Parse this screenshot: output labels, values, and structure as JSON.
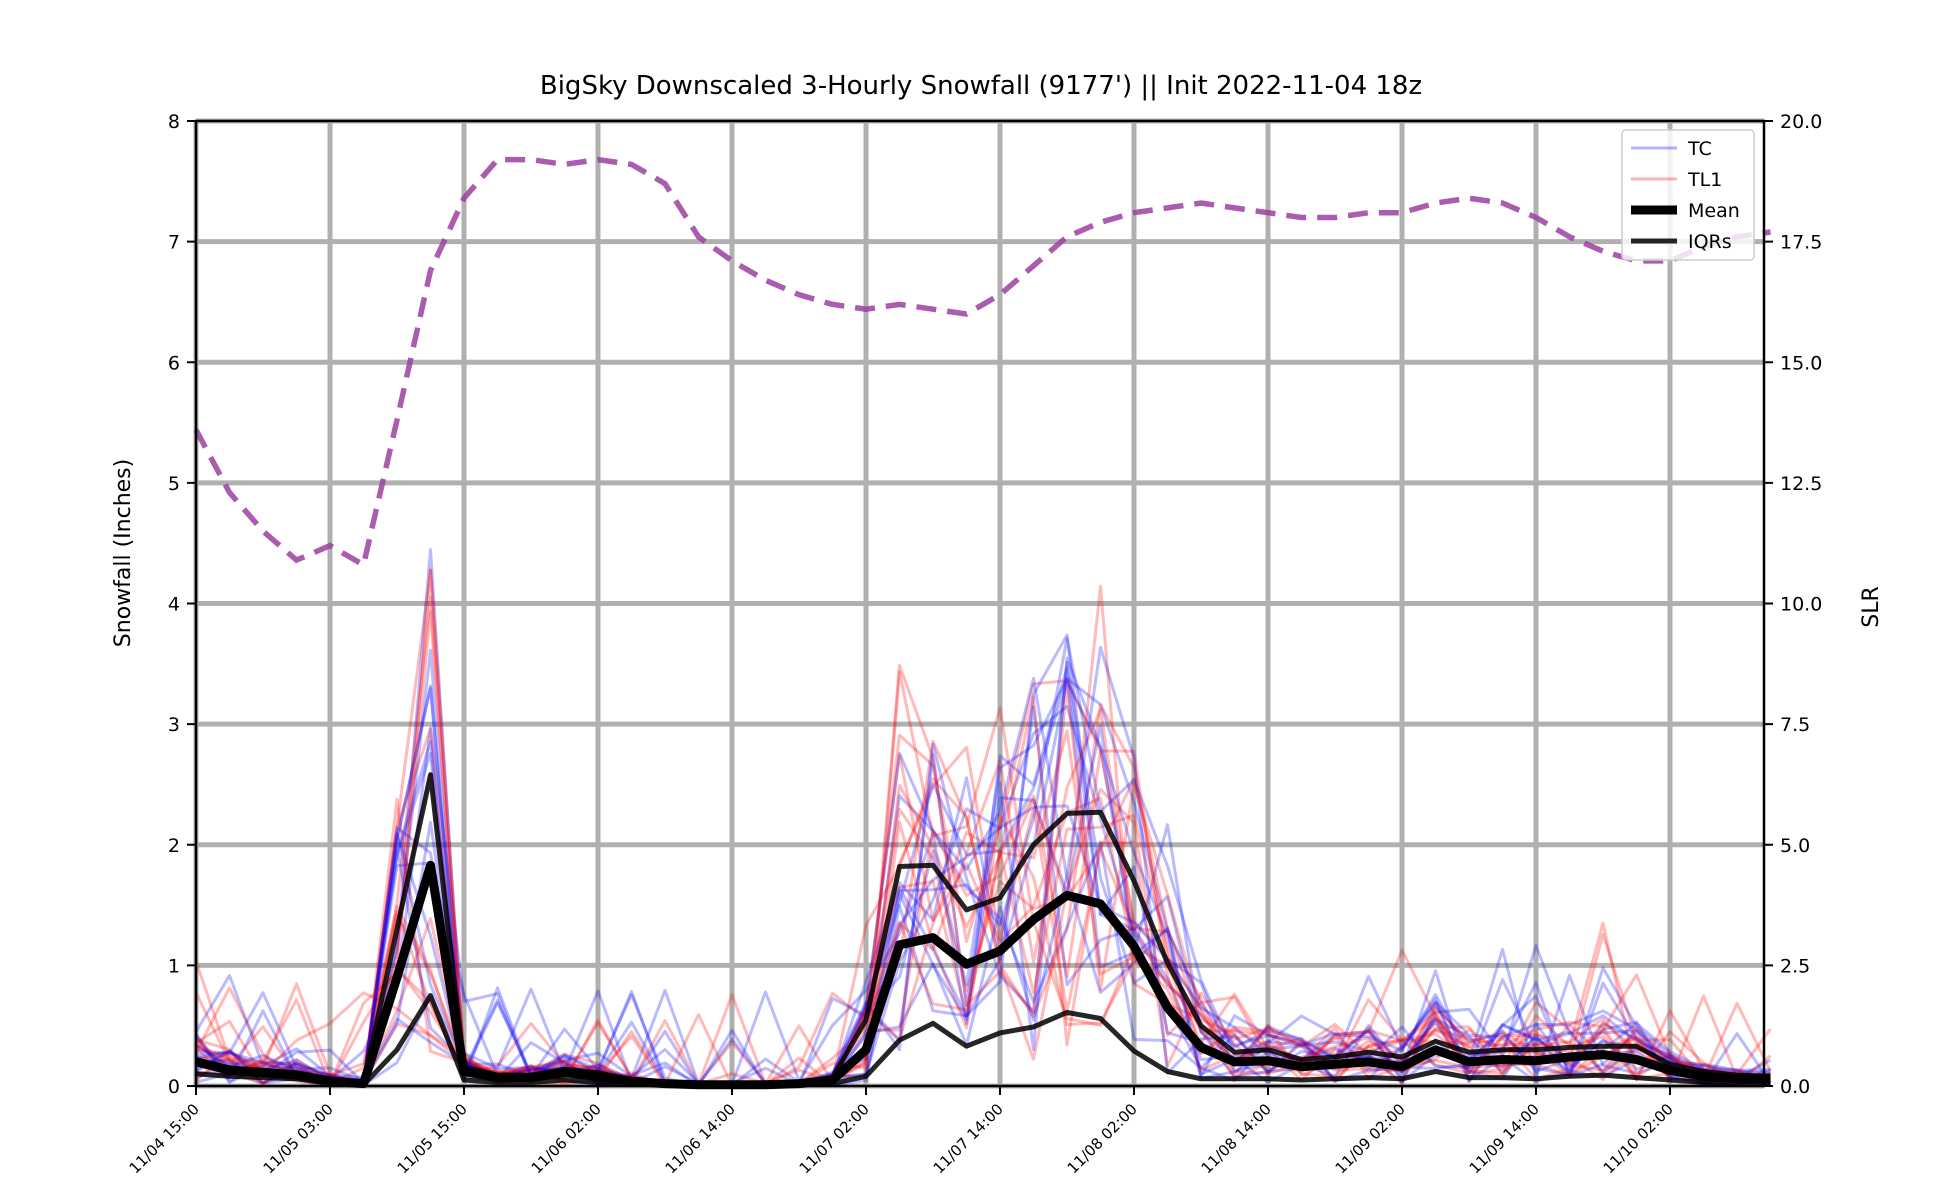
{
  "chart_data": {
    "type": "line",
    "title": "BigSky Downscaled 3-Hourly Snowfall (9177') || Init 2022-11-04 18z",
    "ylabel": "Snowfall (Inches)",
    "y2label": "SLR",
    "ylim": [
      0,
      8
    ],
    "y2lim": [
      0,
      20
    ],
    "yticks": [
      0,
      1,
      2,
      3,
      4,
      5,
      6,
      7,
      8
    ],
    "y2ticks": [
      "0.0",
      "2.5",
      "5.0",
      "7.5",
      "10.0",
      "12.5",
      "15.0",
      "17.5",
      "20.0"
    ],
    "x_start": "11/04 15:00",
    "x_step_hours": 3,
    "xticks": [
      {
        "label": "11/04 15:00",
        "index": 0
      },
      {
        "label": "11/05 03:00",
        "index": 4
      },
      {
        "label": "11/05 15:00",
        "index": 8
      },
      {
        "label": "11/06 02:00",
        "index": 12
      },
      {
        "label": "11/06 14:00",
        "index": 16
      },
      {
        "label": "11/07 02:00",
        "index": 20
      },
      {
        "label": "11/07 14:00",
        "index": 24
      },
      {
        "label": "11/08 02:00",
        "index": 28
      },
      {
        "label": "11/08 14:00",
        "index": 32
      },
      {
        "label": "11/09 02:00",
        "index": 36
      },
      {
        "label": "11/09 14:00",
        "index": 40
      },
      {
        "label": "11/10 02:00",
        "index": 44
      }
    ],
    "grid": true,
    "legend_position": "top-right",
    "legend": [
      {
        "label": "TC",
        "color": "#0000ff",
        "style": "thin-translucent"
      },
      {
        "label": "TL1",
        "color": "#ff0000",
        "style": "thin-translucent"
      },
      {
        "label": "Mean",
        "color": "#000000",
        "style": "thick"
      },
      {
        "label": "IQRs",
        "color": "#000000",
        "style": "medium"
      }
    ],
    "series": [
      {
        "name": "Mean",
        "color": "#000000",
        "values": [
          0.2,
          0.13,
          0.11,
          0.09,
          0.04,
          0.02,
          0.9,
          1.83,
          0.12,
          0.07,
          0.07,
          0.11,
          0.08,
          0.04,
          0.02,
          0.01,
          0.01,
          0.01,
          0.02,
          0.05,
          0.3,
          1.17,
          1.23,
          1.01,
          1.12,
          1.38,
          1.58,
          1.51,
          1.16,
          0.65,
          0.32,
          0.2,
          0.21,
          0.16,
          0.18,
          0.2,
          0.16,
          0.3,
          0.2,
          0.22,
          0.21,
          0.24,
          0.26,
          0.22,
          0.13,
          0.08,
          0.06,
          0.06
        ]
      },
      {
        "name": "IQRs",
        "color": "#000000",
        "values": [
          0.22,
          0.15,
          0.13,
          0.11,
          0.06,
          0.03,
          1.3,
          2.58,
          0.16,
          0.09,
          0.09,
          0.14,
          0.11,
          0.05,
          0.03,
          0.02,
          0.02,
          0.02,
          0.03,
          0.07,
          0.55,
          1.82,
          1.83,
          1.46,
          1.56,
          2.0,
          2.26,
          2.27,
          1.7,
          1.02,
          0.5,
          0.28,
          0.3,
          0.22,
          0.24,
          0.28,
          0.24,
          0.37,
          0.28,
          0.3,
          0.3,
          0.32,
          0.33,
          0.33,
          0.18,
          0.12,
          0.09,
          0.08
        ]
      },
      {
        "name": "IQRs",
        "color": "#000000",
        "values": [
          0.1,
          0.08,
          0.07,
          0.06,
          0.02,
          0.01,
          0.3,
          0.75,
          0.05,
          0.03,
          0.03,
          0.05,
          0.03,
          0.02,
          0.01,
          0.0,
          0.0,
          0.0,
          0.01,
          0.02,
          0.08,
          0.38,
          0.52,
          0.33,
          0.44,
          0.49,
          0.61,
          0.56,
          0.29,
          0.12,
          0.06,
          0.06,
          0.06,
          0.05,
          0.06,
          0.07,
          0.06,
          0.12,
          0.07,
          0.07,
          0.06,
          0.08,
          0.09,
          0.07,
          0.05,
          0.03,
          0.02,
          0.02
        ]
      },
      {
        "name": "SLR",
        "axis": "right",
        "color": "#9b3fa0",
        "style": "dashed",
        "values": [
          13.6,
          12.3,
          11.5,
          10.9,
          11.2,
          10.8,
          13.8,
          16.9,
          18.4,
          19.2,
          19.2,
          19.1,
          19.2,
          19.1,
          18.7,
          17.6,
          17.1,
          16.7,
          16.4,
          16.2,
          16.1,
          16.2,
          16.1,
          16.0,
          16.4,
          17.0,
          17.6,
          17.9,
          18.1,
          18.2,
          18.3,
          18.2,
          18.1,
          18.0,
          18.0,
          18.1,
          18.1,
          18.3,
          18.4,
          18.3,
          18.0,
          17.6,
          17.3,
          17.1,
          17.1,
          17.4,
          17.6,
          17.7
        ]
      }
    ]
  }
}
